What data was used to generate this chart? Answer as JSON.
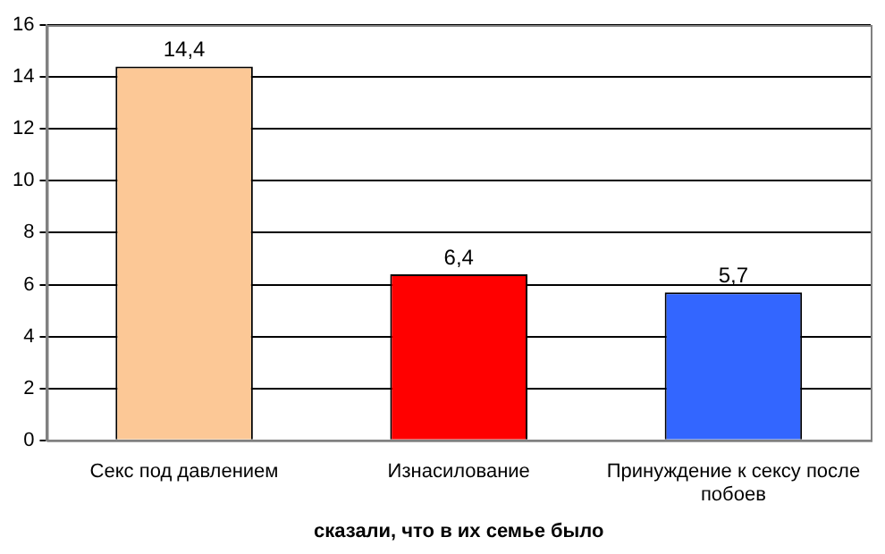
{
  "chart_data": {
    "type": "bar",
    "xlabel": "сказали, что в их семье было",
    "categories": [
      "Секс под давлением",
      "Изнасилование",
      "Принуждение к сексу после побоев"
    ],
    "values": [
      14.4,
      6.4,
      5.7
    ],
    "value_labels": [
      "14,4",
      "6,4",
      "5,7"
    ],
    "colors": [
      "#fcc896",
      "#ff0000",
      "#3366ff"
    ],
    "ylim": [
      0,
      16
    ],
    "yticks": [
      0,
      2,
      4,
      6,
      8,
      10,
      12,
      14,
      16
    ],
    "grid": "y",
    "legend": false
  }
}
